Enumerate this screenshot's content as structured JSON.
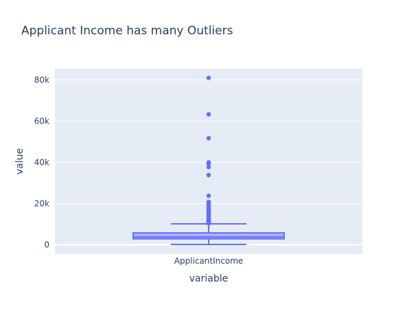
{
  "chart_data": {
    "type": "box",
    "title": "Applicant Income has many Outliers",
    "xlabel": "variable",
    "ylabel": "value",
    "categories": [
      "ApplicantIncome"
    ],
    "y_ticks": [
      {
        "value": 0,
        "label": "0"
      },
      {
        "value": 20000,
        "label": "20k"
      },
      {
        "value": 40000,
        "label": "40k"
      },
      {
        "value": 60000,
        "label": "60k"
      },
      {
        "value": 80000,
        "label": "80k"
      }
    ],
    "ylim": [
      -4500,
      85500
    ],
    "grid": true,
    "colors": {
      "plot_background": "#e5ecf6",
      "grid": "#ffffff",
      "box_line": "#636efa",
      "box_fill": "#aab2fb",
      "outlier": "#636efa",
      "text": "#2a3f5f"
    },
    "box": {
      "min": 150,
      "q1": 2880,
      "median": 3810,
      "q3": 5790,
      "upper_fence": 10170
    },
    "outliers": [
      81000,
      63337,
      51763,
      39999,
      39147,
      37719,
      33846,
      23803,
      20833,
      20667,
      20233,
      19730,
      19484,
      18333,
      18165,
      17763,
      17500,
      16692,
      16666,
      16250,
      16120,
      15759,
      15000,
      14999,
      14880,
      14866,
      14683,
      14583,
      13650,
      13262,
      12876,
      12841,
      12500,
      12000,
      11757,
      11500,
      11417,
      11250,
      11146,
      11000,
      10833,
      10750,
      10513,
      10408
    ]
  }
}
